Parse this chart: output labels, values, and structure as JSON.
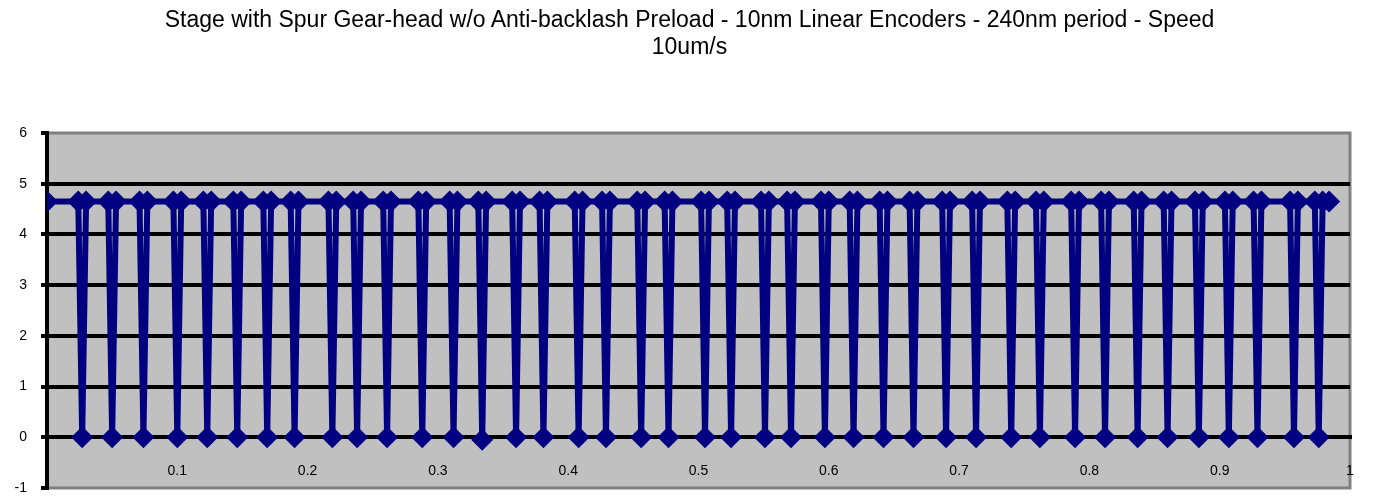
{
  "chart_data": {
    "type": "line",
    "title": "Stage with Spur Gear-head w/o Anti-backlash Preload - 10nm Linear Encoders - 240nm period - Speed 10um/s",
    "x": [
      0,
      0.024,
      0.027,
      0.03,
      0.047,
      0.05,
      0.053,
      0.071,
      0.074,
      0.077,
      0.097,
      0.1,
      0.103,
      0.12,
      0.123,
      0.126,
      0.143,
      0.146,
      0.149,
      0.166,
      0.169,
      0.172,
      0.187,
      0.19,
      0.193,
      0.216,
      0.219,
      0.222,
      0.235,
      0.238,
      0.241,
      0.258,
      0.261,
      0.264,
      0.285,
      0.288,
      0.291,
      0.309,
      0.312,
      0.315,
      0.331,
      0.334,
      0.337,
      0.357,
      0.36,
      0.363,
      0.378,
      0.381,
      0.384,
      0.405,
      0.408,
      0.411,
      0.426,
      0.429,
      0.432,
      0.453,
      0.456,
      0.459,
      0.474,
      0.477,
      0.48,
      0.502,
      0.505,
      0.508,
      0.522,
      0.525,
      0.528,
      0.548,
      0.551,
      0.554,
      0.568,
      0.571,
      0.574,
      0.594,
      0.597,
      0.6,
      0.616,
      0.619,
      0.622,
      0.639,
      0.642,
      0.645,
      0.662,
      0.665,
      0.668,
      0.687,
      0.69,
      0.693,
      0.71,
      0.713,
      0.716,
      0.737,
      0.74,
      0.743,
      0.759,
      0.762,
      0.765,
      0.786,
      0.789,
      0.792,
      0.809,
      0.812,
      0.815,
      0.834,
      0.837,
      0.84,
      0.857,
      0.86,
      0.863,
      0.881,
      0.884,
      0.887,
      0.904,
      0.907,
      0.91,
      0.926,
      0.929,
      0.932,
      0.954,
      0.957,
      0.96,
      0.973,
      0.976,
      0.979,
      0.984
    ],
    "values": [
      4.65,
      4.65,
      0,
      4.65,
      4.65,
      0,
      4.65,
      4.65,
      0,
      4.65,
      4.65,
      0,
      4.65,
      4.65,
      0,
      4.65,
      4.65,
      0,
      4.65,
      4.65,
      0,
      4.65,
      4.65,
      0,
      4.65,
      4.65,
      0,
      4.65,
      4.65,
      0,
      4.65,
      4.65,
      0,
      4.65,
      4.65,
      0,
      4.65,
      4.65,
      0,
      4.65,
      4.65,
      -0.05,
      4.65,
      4.65,
      0,
      4.65,
      4.65,
      0,
      4.65,
      4.65,
      0,
      4.65,
      4.65,
      0,
      4.65,
      4.65,
      0,
      4.65,
      4.65,
      0,
      4.65,
      4.65,
      0,
      4.65,
      4.65,
      0,
      4.65,
      4.65,
      0,
      4.65,
      4.65,
      0,
      4.65,
      4.65,
      0,
      4.65,
      4.65,
      0,
      4.65,
      4.65,
      0,
      4.65,
      4.65,
      0,
      4.65,
      4.65,
      0,
      4.65,
      4.65,
      0,
      4.65,
      4.65,
      0,
      4.65,
      4.65,
      0,
      4.65,
      4.65,
      0,
      4.65,
      4.65,
      0,
      4.65,
      4.65,
      0,
      4.65,
      4.65,
      0,
      4.65,
      4.65,
      0,
      4.65,
      4.65,
      0,
      4.65,
      4.65,
      0,
      4.65,
      4.65,
      0,
      4.65,
      4.65,
      0,
      4.65,
      4.65
    ],
    "color": "#000080",
    "marker": "diamond",
    "grid": "y",
    "xlim": [
      0,
      1
    ],
    "xticks": [
      {
        "value": 0,
        "label": null
      },
      0.1,
      0.2,
      0.3,
      0.4,
      0.5,
      0.6,
      0.7,
      0.8,
      0.9,
      1
    ],
    "ylim": [
      -1,
      6
    ],
    "yticks": [
      -1,
      0,
      1,
      2,
      3,
      4,
      5,
      6
    ]
  }
}
